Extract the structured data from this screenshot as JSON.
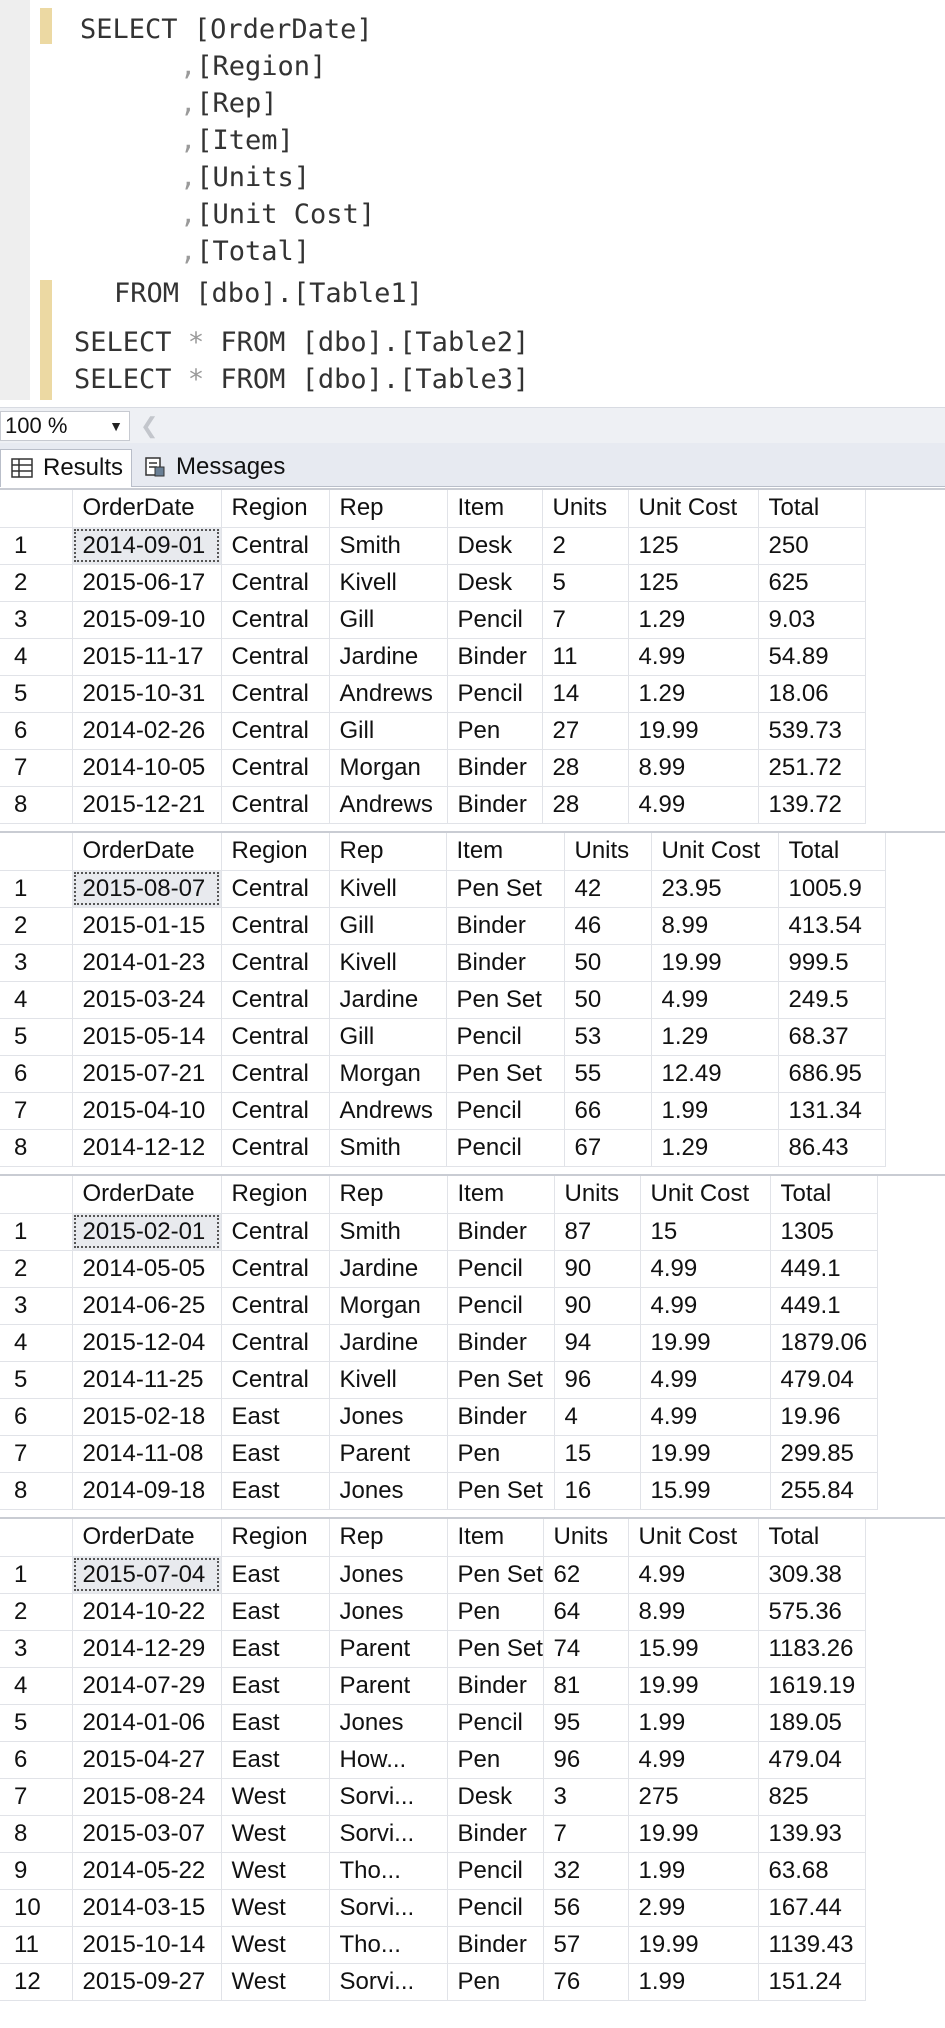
{
  "editor": {
    "lines": [
      {
        "type": "first",
        "kw": "SELECT",
        "rest": "[OrderDate]"
      },
      {
        "type": "col",
        "text": "[Region]"
      },
      {
        "type": "col",
        "text": "[Rep]"
      },
      {
        "type": "col",
        "text": "[Item]"
      },
      {
        "type": "col",
        "text": "[Units]"
      },
      {
        "type": "col",
        "text": "[Unit Cost]"
      },
      {
        "type": "col",
        "text": "[Total]"
      },
      {
        "type": "from",
        "kw": "FROM",
        "rest": "[dbo].[Table1]"
      },
      {
        "type": "star",
        "kw1": "SELECT",
        "star": "*",
        "kw2": "FROM",
        "rest": "[dbo].[Table2]"
      },
      {
        "type": "star",
        "kw1": "SELECT",
        "star": "*",
        "kw2": "FROM",
        "rest": "[dbo].[Table3]"
      }
    ]
  },
  "zoom": {
    "value": "100 %"
  },
  "tabs": [
    {
      "label": "Results",
      "icon": "grid-icon"
    },
    {
      "label": "Messages",
      "icon": "messages-icon"
    }
  ],
  "grids": [
    {
      "columns": [
        "OrderDate",
        "Region",
        "Rep",
        "Item",
        "Units",
        "Unit Cost",
        "Total"
      ],
      "rows": [
        [
          "1",
          "2014-09-01",
          "Central",
          "Smith",
          "Desk",
          "2",
          "125",
          "250"
        ],
        [
          "2",
          "2015-06-17",
          "Central",
          "Kivell",
          "Desk",
          "5",
          "125",
          "625"
        ],
        [
          "3",
          "2015-09-10",
          "Central",
          "Gill",
          "Pencil",
          "7",
          "1.29",
          "9.03"
        ],
        [
          "4",
          "2015-11-17",
          "Central",
          "Jardine",
          "Binder",
          "11",
          "4.99",
          "54.89"
        ],
        [
          "5",
          "2015-10-31",
          "Central",
          "Andrews",
          "Pencil",
          "14",
          "1.29",
          "18.06"
        ],
        [
          "6",
          "2014-02-26",
          "Central",
          "Gill",
          "Pen",
          "27",
          "19.99",
          "539.73"
        ],
        [
          "7",
          "2014-10-05",
          "Central",
          "Morgan",
          "Binder",
          "28",
          "8.99",
          "251.72"
        ],
        [
          "8",
          "2015-12-21",
          "Central",
          "Andrews",
          "Binder",
          "28",
          "4.99",
          "139.72"
        ]
      ]
    },
    {
      "columns": [
        "OrderDate",
        "Region",
        "Rep",
        "Item",
        "Units",
        "Unit Cost",
        "Total"
      ],
      "rows": [
        [
          "1",
          "2015-08-07",
          "Central",
          "Kivell",
          "Pen Set",
          "42",
          "23.95",
          "1005.9"
        ],
        [
          "2",
          "2015-01-15",
          "Central",
          "Gill",
          "Binder",
          "46",
          "8.99",
          "413.54"
        ],
        [
          "3",
          "2014-01-23",
          "Central",
          "Kivell",
          "Binder",
          "50",
          "19.99",
          "999.5"
        ],
        [
          "4",
          "2015-03-24",
          "Central",
          "Jardine",
          "Pen Set",
          "50",
          "4.99",
          "249.5"
        ],
        [
          "5",
          "2015-05-14",
          "Central",
          "Gill",
          "Pencil",
          "53",
          "1.29",
          "68.37"
        ],
        [
          "6",
          "2015-07-21",
          "Central",
          "Morgan",
          "Pen Set",
          "55",
          "12.49",
          "686.95"
        ],
        [
          "7",
          "2015-04-10",
          "Central",
          "Andrews",
          "Pencil",
          "66",
          "1.99",
          "131.34"
        ],
        [
          "8",
          "2014-12-12",
          "Central",
          "Smith",
          "Pencil",
          "67",
          "1.29",
          "86.43"
        ]
      ]
    },
    {
      "columns": [
        "OrderDate",
        "Region",
        "Rep",
        "Item",
        "Units",
        "Unit Cost",
        "Total"
      ],
      "rows": [
        [
          "1",
          "2015-02-01",
          "Central",
          "Smith",
          "Binder",
          "87",
          "15",
          "1305"
        ],
        [
          "2",
          "2014-05-05",
          "Central",
          "Jardine",
          "Pencil",
          "90",
          "4.99",
          "449.1"
        ],
        [
          "3",
          "2014-06-25",
          "Central",
          "Morgan",
          "Pencil",
          "90",
          "4.99",
          "449.1"
        ],
        [
          "4",
          "2015-12-04",
          "Central",
          "Jardine",
          "Binder",
          "94",
          "19.99",
          "1879.06"
        ],
        [
          "5",
          "2014-11-25",
          "Central",
          "Kivell",
          "Pen Set",
          "96",
          "4.99",
          "479.04"
        ],
        [
          "6",
          "2015-02-18",
          "East",
          "Jones",
          "Binder",
          "4",
          "4.99",
          "19.96"
        ],
        [
          "7",
          "2014-11-08",
          "East",
          "Parent",
          "Pen",
          "15",
          "19.99",
          "299.85"
        ],
        [
          "8",
          "2014-09-18",
          "East",
          "Jones",
          "Pen Set",
          "16",
          "15.99",
          "255.84"
        ]
      ]
    },
    {
      "columns": [
        "OrderDate",
        "Region",
        "Rep",
        "Item",
        "Units",
        "Unit Cost",
        "Total"
      ],
      "rows": [
        [
          "1",
          "2015-07-04",
          "East",
          "Jones",
          "Pen Set",
          "62",
          "4.99",
          "309.38"
        ],
        [
          "2",
          "2014-10-22",
          "East",
          "Jones",
          "Pen",
          "64",
          "8.99",
          "575.36"
        ],
        [
          "3",
          "2014-12-29",
          "East",
          "Parent",
          "Pen Set",
          "74",
          "15.99",
          "1183.26"
        ],
        [
          "4",
          "2014-07-29",
          "East",
          "Parent",
          "Binder",
          "81",
          "19.99",
          "1619.19"
        ],
        [
          "5",
          "2014-01-06",
          "East",
          "Jones",
          "Pencil",
          "95",
          "1.99",
          "189.05"
        ],
        [
          "6",
          "2015-04-27",
          "East",
          "How...",
          "Pen",
          "96",
          "4.99",
          "479.04"
        ],
        [
          "7",
          "2015-08-24",
          "West",
          "Sorvi...",
          "Desk",
          "3",
          "275",
          "825"
        ],
        [
          "8",
          "2015-03-07",
          "West",
          "Sorvi...",
          "Binder",
          "7",
          "19.99",
          "139.93"
        ],
        [
          "9",
          "2014-05-22",
          "West",
          "Tho...",
          "Pencil",
          "32",
          "1.99",
          "63.68"
        ],
        [
          "10",
          "2014-03-15",
          "West",
          "Sorvi...",
          "Pencil",
          "56",
          "2.99",
          "167.44"
        ],
        [
          "11",
          "2015-10-14",
          "West",
          "Tho...",
          "Binder",
          "57",
          "19.99",
          "1139.43"
        ],
        [
          "12",
          "2015-09-27",
          "West",
          "Sorvi...",
          "Pen",
          "76",
          "1.99",
          "151.24"
        ]
      ]
    }
  ]
}
